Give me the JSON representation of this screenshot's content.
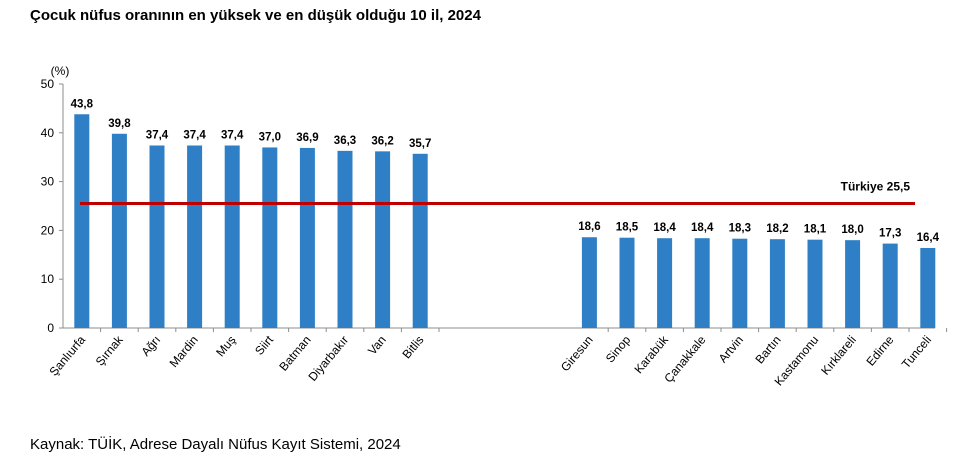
{
  "chart_data": {
    "type": "bar",
    "title": "Çocuk nüfus oranının en yüksek ve en düşük olduğu 10 il, 2024",
    "unit_label": "(%)",
    "ylim": [
      0,
      50
    ],
    "yticks": [
      "0",
      "10",
      "20",
      "30",
      "40",
      "50"
    ],
    "categories": [
      "Şanlıurfa",
      "Şırnak",
      "Ağrı",
      "Mardin",
      "Muş",
      "Siirt",
      "Batman",
      "Diyarbakır",
      "Van",
      "Bitlis",
      "Giresun",
      "Sinop",
      "Karabük",
      "Çanakkale",
      "Artvin",
      "Bartın",
      "Kastamonu",
      "Kırklareli",
      "Edirne",
      "Tunceli"
    ],
    "values": [
      43.8,
      39.8,
      37.4,
      37.4,
      37.4,
      37.0,
      36.9,
      36.3,
      36.2,
      35.7,
      18.6,
      18.5,
      18.4,
      18.4,
      18.3,
      18.2,
      18.1,
      18.0,
      17.3,
      16.4
    ],
    "value_labels": [
      "43,8",
      "39,8",
      "37,4",
      "37,4",
      "37,4",
      "37,0",
      "36,9",
      "36,3",
      "36,2",
      "35,7",
      "18,6",
      "18,5",
      "18,4",
      "18,4",
      "18,3",
      "18,2",
      "18,1",
      "18,0",
      "17,3",
      "16,4"
    ],
    "reference_line": {
      "label": "Türkiye  25,5",
      "value": 25.5,
      "color": "#c00000"
    },
    "bar_color": "#2e7fc6",
    "grid": false
  },
  "source": "Kaynak: TÜİK, Adrese Dayalı Nüfus Kayıt Sistemi, 2024"
}
